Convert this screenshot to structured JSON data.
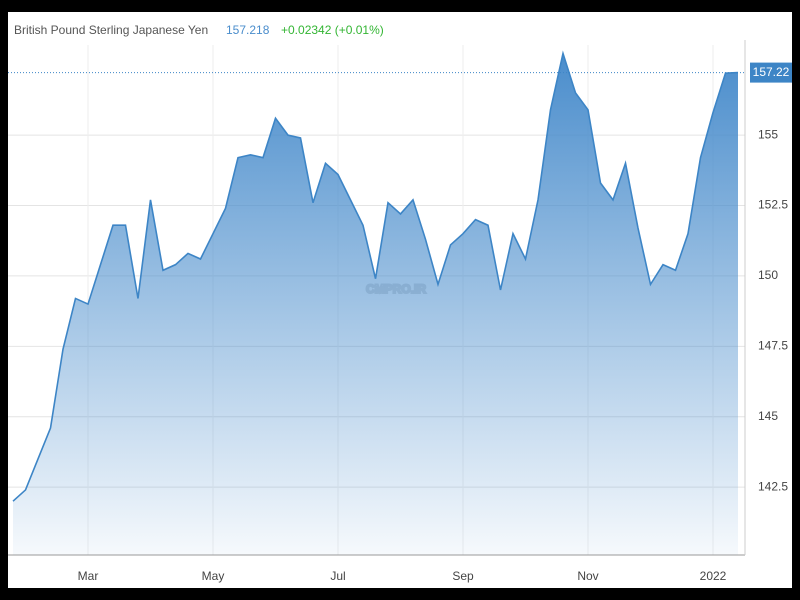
{
  "chart_data": {
    "type": "area",
    "title": "British Pound Sterling Japanese Yen",
    "price": 157.218,
    "change": "+0.02342 (+0.01%)",
    "current_price": 157.22,
    "watermark": "CMPRO.IR",
    "color": "#3d85c6",
    "categories": [
      null,
      null,
      null,
      null,
      null,
      null,
      "Mar",
      null,
      null,
      null,
      null,
      null,
      null,
      null,
      null,
      null,
      "May",
      null,
      null,
      null,
      null,
      null,
      null,
      null,
      null,
      null,
      "Jul",
      null,
      null,
      null,
      null,
      null,
      null,
      null,
      null,
      null,
      "Sep",
      null,
      null,
      null,
      null,
      null,
      null,
      null,
      null,
      null,
      "Nov",
      null,
      null,
      null,
      null,
      null,
      null,
      null,
      null,
      null,
      "2022",
      null,
      null
    ],
    "values": [
      142.0,
      142.4,
      143.5,
      144.6,
      147.4,
      149.2,
      149.0,
      150.4,
      151.8,
      151.8,
      149.2,
      152.7,
      150.2,
      150.4,
      150.8,
      150.6,
      151.5,
      152.4,
      154.2,
      154.3,
      154.2,
      155.6,
      155.0,
      154.9,
      152.6,
      154.0,
      153.6,
      152.7,
      151.8,
      149.9,
      152.6,
      152.2,
      152.7,
      151.3,
      149.7,
      151.1,
      151.5,
      152.0,
      151.8,
      149.5,
      151.5,
      150.6,
      152.7,
      155.9,
      157.9,
      156.5,
      155.9,
      153.3,
      152.7,
      154.0,
      151.7,
      149.7,
      150.4,
      150.2,
      151.5,
      154.2,
      155.8,
      157.2,
      157.22
    ],
    "ylim": [
      140.09,
      158.2
    ],
    "yticks": [
      142.5,
      145,
      147.5,
      150,
      152.5,
      155
    ],
    "grid": true
  }
}
